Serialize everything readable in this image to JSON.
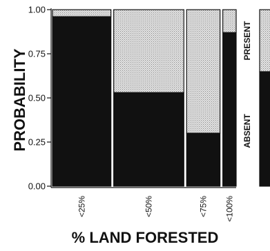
{
  "chart_data": {
    "type": "mosaic",
    "title": "",
    "xlabel": "% LAND FORESTED",
    "ylabel": "PROBABILITY",
    "ylim": [
      0,
      1
    ],
    "yticks": [
      "0.00",
      "0.25",
      "0.50",
      "0.75",
      "1.00"
    ],
    "categories": [
      "<25%",
      "<50%",
      "<75%",
      "<100%"
    ],
    "category_share": [
      0.35,
      0.42,
      0.2,
      0.08
    ],
    "series": [
      {
        "name": "ABSENT",
        "values": [
          0.96,
          0.53,
          0.3,
          0.87
        ],
        "color": "#111111"
      },
      {
        "name": "PRESENT",
        "values": [
          0.04,
          0.47,
          0.7,
          0.13
        ],
        "color": "#d9d9d9"
      }
    ],
    "legend": {
      "position": "right",
      "items": [
        "PRESENT",
        "ABSENT"
      ]
    }
  }
}
